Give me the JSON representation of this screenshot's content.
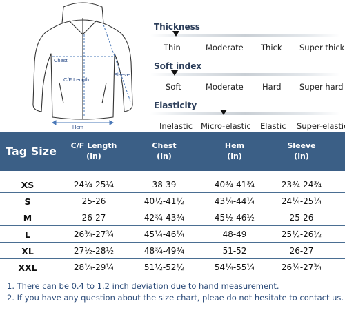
{
  "diagram": {
    "chest_label": "Chest",
    "cf_length_label": "C/F Length",
    "sleeve_label": "Sleeve",
    "hem_label": "Hem"
  },
  "attributes": [
    {
      "title": "Thickness",
      "options": [
        "Thin",
        "Moderate",
        "Thick",
        "Super thick"
      ],
      "selected_index": 0
    },
    {
      "title": "Soft index",
      "options": [
        "Soft",
        "Moderate",
        "Hard",
        "Super hard"
      ],
      "selected_index": 0
    },
    {
      "title": "Elasticity",
      "options": [
        "Inelastic",
        "Micro-elastic",
        "Elastic",
        "Super-elastic"
      ],
      "selected_index": 1
    }
  ],
  "table": {
    "header_color": "#3b5f86",
    "tag_size_label": "Tag Size",
    "columns": [
      {
        "name": "C/F Length",
        "unit": "(in)"
      },
      {
        "name": "Chest",
        "unit": "(in)"
      },
      {
        "name": "Hem",
        "unit": "(in)"
      },
      {
        "name": "Sleeve",
        "unit": "(in)"
      }
    ],
    "rows": [
      {
        "size": "XS",
        "cf_length": "24¼-25¼",
        "chest": "38-39",
        "hem": "40¾-41¾",
        "sleeve": "23¾-24¾"
      },
      {
        "size": "S",
        "cf_length": "25-26",
        "chest": "40½-41½",
        "hem": "43¼-44¼",
        "sleeve": "24¼-25¼"
      },
      {
        "size": "M",
        "cf_length": "26-27",
        "chest": "42¾-43¾",
        "hem": "45½-46½",
        "sleeve": "25-26"
      },
      {
        "size": "L",
        "cf_length": "26¾-27¾",
        "chest": "45¼-46¼",
        "hem": "48-49",
        "sleeve": "25½-26½"
      },
      {
        "size": "XL",
        "cf_length": "27½-28½",
        "chest": "48¾-49¾",
        "hem": "51-52",
        "sleeve": "26-27"
      },
      {
        "size": "XXL",
        "cf_length": "28¼-29¼",
        "chest": "51½-52½",
        "hem": "54¼-55¼",
        "sleeve": "26¾-27¾"
      }
    ]
  },
  "notes": [
    "1. There can be 0.4 to 1.2 inch deviation due to hand measurement.",
    "2. If you have any question about the size chart, pleae do not hesitate to contact us."
  ]
}
